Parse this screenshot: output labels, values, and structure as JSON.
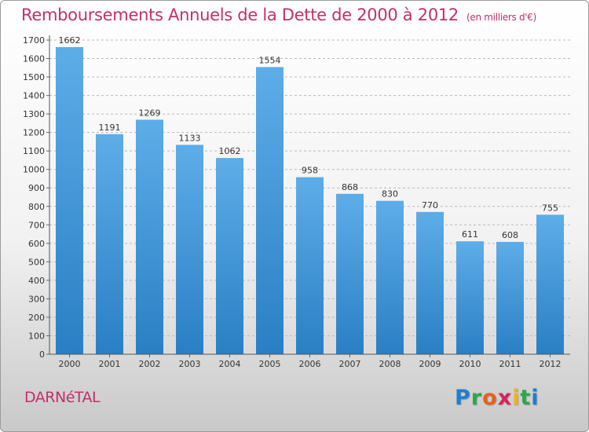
{
  "header": {
    "title": "Remboursements Annuels de la Dette de 2000 à 2012",
    "unit": "(en milliers d'€)"
  },
  "footer": {
    "place": "DARNéTAL",
    "brand": [
      "P",
      "r",
      "o",
      "x",
      "i",
      "t",
      "i"
    ]
  },
  "colors": {
    "title": "#c0306b",
    "bar_top": "#5dade8",
    "bar_bottom": "#2a7fc4",
    "grid": "#b8b8b8"
  },
  "chart_data": {
    "type": "bar",
    "title": "Remboursements Annuels de la Dette de 2000 à 2012",
    "xlabel": "",
    "ylabel": "",
    "categories": [
      "2000",
      "2001",
      "2002",
      "2003",
      "2004",
      "2005",
      "2006",
      "2007",
      "2008",
      "2009",
      "2010",
      "2011",
      "2012"
    ],
    "values": [
      1662,
      1191,
      1269,
      1133,
      1062,
      1554,
      958,
      868,
      830,
      770,
      611,
      608,
      755
    ],
    "ylim": [
      0,
      1700
    ],
    "yticks": [
      0,
      100,
      200,
      300,
      400,
      500,
      600,
      700,
      800,
      900,
      1000,
      1100,
      1200,
      1300,
      1400,
      1500,
      1600,
      1700
    ],
    "grid": "horizontal dashed",
    "data_labels": true,
    "legend": "none"
  }
}
